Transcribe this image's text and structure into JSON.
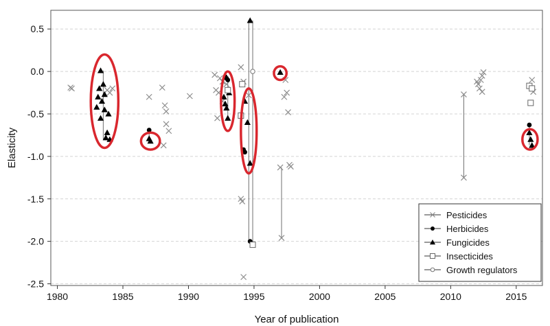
{
  "chart_data": {
    "type": "scatter",
    "xlabel": "Year of publication",
    "ylabel": "Elasticity",
    "xlim": [
      1979.5,
      2017
    ],
    "ylim": [
      -2.52,
      0.72
    ],
    "xticks": [
      1980,
      1985,
      1990,
      1995,
      2000,
      2005,
      2010,
      2015
    ],
    "yticks": [
      0.5,
      0.0,
      -0.5,
      -1.0,
      -1.5,
      -2.0,
      -2.5
    ],
    "xtick_labels": [
      "1980",
      "1985",
      "1990",
      "1995",
      "2000",
      "2005",
      "2010",
      "2015"
    ],
    "ytick_labels": [
      "0.5",
      "0.0",
      "-0.5",
      "-1.0",
      "-1.5",
      "-2.0",
      "-2.5"
    ],
    "grid": "horizontal dashed at y ticks",
    "legend_position": "bottom-right",
    "legend": [
      {
        "label": "Pesticides",
        "marker": "x"
      },
      {
        "label": "Herbicides",
        "marker": "circle-filled"
      },
      {
        "label": "Fungicides",
        "marker": "triangle-filled"
      },
      {
        "label": "Insecticides",
        "marker": "square-open"
      },
      {
        "label": "Growth regulators",
        "marker": "circle-open"
      }
    ],
    "series": [
      {
        "name": "Pesticides",
        "marker": "x",
        "points": [
          [
            1981,
            -0.19
          ],
          [
            1981.1,
            -0.2
          ],
          [
            1983.8,
            -0.22
          ],
          [
            1984.0,
            -0.25
          ],
          [
            1984.2,
            -0.2
          ],
          [
            1987,
            -0.3
          ],
          [
            1988,
            -0.19
          ],
          [
            1988.2,
            -0.4
          ],
          [
            1988.3,
            -0.47
          ],
          [
            1988.3,
            -0.62
          ],
          [
            1988.5,
            -0.7
          ],
          [
            1988.1,
            -0.87
          ],
          [
            1990.1,
            -0.29
          ],
          [
            1992,
            -0.04
          ],
          [
            1992.1,
            -0.22
          ],
          [
            1992.3,
            -0.25
          ],
          [
            1992.4,
            -0.08
          ],
          [
            1992.6,
            -0.12
          ],
          [
            1992.2,
            -0.55
          ],
          [
            1992.6,
            -0.35
          ],
          [
            1992.9,
            -0.15
          ],
          [
            1994,
            0.05
          ],
          [
            1994.2,
            -0.12
          ],
          [
            1994,
            -1.5
          ],
          [
            1994.1,
            -1.53
          ],
          [
            1994.2,
            -2.42
          ],
          [
            1994.6,
            -0.28
          ],
          [
            1997,
            -1.13
          ],
          [
            1997.1,
            -1.96
          ],
          [
            1997.3,
            -0.3
          ],
          [
            1997.4,
            -0.1
          ],
          [
            1997.5,
            -0.25
          ],
          [
            1997.6,
            -0.48
          ],
          [
            1997.7,
            -1.1
          ],
          [
            1997.8,
            -1.12
          ],
          [
            2011,
            -0.27
          ],
          [
            2011,
            -1.25
          ],
          [
            2012,
            -0.12
          ],
          [
            2012.1,
            -0.15
          ],
          [
            2012.2,
            -0.2
          ],
          [
            2012.3,
            -0.1
          ],
          [
            2012.4,
            -0.24
          ],
          [
            2012.4,
            -0.05
          ],
          [
            2012.5,
            -0.01
          ],
          [
            2016.2,
            -0.1
          ],
          [
            2016.3,
            -0.24
          ]
        ]
      },
      {
        "name": "Herbicides",
        "marker": "circle-filled",
        "points": [
          [
            1987,
            -0.69
          ],
          [
            1992.8,
            -0.06
          ],
          [
            1992.9,
            -0.08
          ],
          [
            1993,
            -0.1
          ],
          [
            1994.2,
            -0.92
          ],
          [
            1994.3,
            -0.95
          ],
          [
            1994.7,
            -2.0
          ],
          [
            2016,
            -0.63
          ]
        ]
      },
      {
        "name": "Fungicides",
        "marker": "triangle-filled",
        "points": [
          [
            1983,
            -0.42
          ],
          [
            1983.1,
            -0.3
          ],
          [
            1983.2,
            -0.2
          ],
          [
            1983.3,
            0.01
          ],
          [
            1983.3,
            -0.55
          ],
          [
            1983.4,
            -0.35
          ],
          [
            1983.5,
            -0.15
          ],
          [
            1983.6,
            -0.45
          ],
          [
            1983.6,
            -0.27
          ],
          [
            1983.7,
            -0.78
          ],
          [
            1983.8,
            -0.72
          ],
          [
            1983.9,
            -0.5
          ],
          [
            1984.0,
            -0.8
          ],
          [
            1987,
            -0.79
          ],
          [
            1987.1,
            -0.82
          ],
          [
            1992.7,
            -0.3
          ],
          [
            1992.8,
            -0.38
          ],
          [
            1992.9,
            -0.43
          ],
          [
            1993,
            -0.55
          ],
          [
            1993.1,
            -0.25
          ],
          [
            1994.3,
            -0.35
          ],
          [
            1994.5,
            -0.6
          ],
          [
            1994.7,
            -1.08
          ],
          [
            1994.7,
            0.6
          ],
          [
            1997,
            -0.01
          ],
          [
            2016,
            -0.72
          ],
          [
            2016.1,
            -0.8
          ],
          [
            2016.2,
            -0.87
          ]
        ]
      },
      {
        "name": "Insecticides",
        "marker": "square-open",
        "points": [
          [
            1993,
            -0.22
          ],
          [
            1994,
            -0.52
          ],
          [
            1994.1,
            -0.15
          ],
          [
            1994.9,
            -2.04
          ],
          [
            2016,
            -0.17
          ],
          [
            2016.1,
            -0.37
          ],
          [
            2016.2,
            -0.2
          ]
        ]
      },
      {
        "name": "Growth regulators",
        "marker": "circle-open",
        "points": [
          [
            1994.9,
            0.0
          ]
        ]
      }
    ],
    "range_lines": [
      {
        "x": 1983.5,
        "y": [
          0.01,
          -0.8
        ]
      },
      {
        "x": 1987,
        "y": [
          -0.69,
          -0.82
        ]
      },
      {
        "x": 1993,
        "y": [
          -0.06,
          -0.55
        ]
      },
      {
        "x": 1994.6,
        "y": [
          0.6,
          -2.0
        ]
      },
      {
        "x": 1994.9,
        "y": [
          0.6,
          -2.04
        ]
      },
      {
        "x": 1997.1,
        "y": [
          -1.13,
          -1.96
        ]
      },
      {
        "x": 2011,
        "y": [
          -0.27,
          -1.25
        ]
      },
      {
        "x": 2016,
        "y": [
          -0.63,
          -0.87
        ]
      }
    ],
    "highlight_ellipses": [
      {
        "cx": 1983.6,
        "cy": -0.35,
        "rx": 1.05,
        "ry": 0.55
      },
      {
        "cx": 1987.1,
        "cy": -0.82,
        "rx": 0.72,
        "ry": 0.1
      },
      {
        "cx": 1993.0,
        "cy": -0.35,
        "rx": 0.52,
        "ry": 0.35
      },
      {
        "cx": 1994.6,
        "cy": -0.7,
        "rx": 0.6,
        "ry": 0.5
      },
      {
        "cx": 1997.0,
        "cy": -0.02,
        "rx": 0.48,
        "ry": 0.08
      },
      {
        "cx": 2016.05,
        "cy": -0.8,
        "rx": 0.58,
        "ry": 0.12
      }
    ],
    "highlight_color": "#d9272e"
  }
}
